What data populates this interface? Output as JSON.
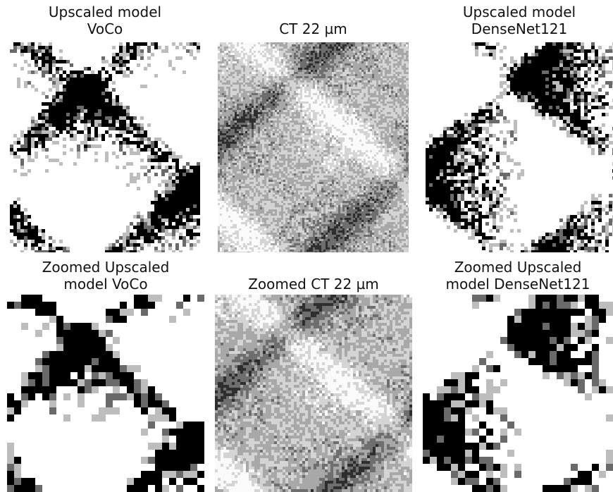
{
  "panels": [
    {
      "title": [
        "Upscaled model",
        "VoCo"
      ]
    },
    {
      "title": [
        "CT 22 µm"
      ]
    },
    {
      "title": [
        "Upscaled model",
        "DenseNet121"
      ]
    },
    {
      "title": [
        "Zoomed Upscaled",
        "model VoCo"
      ]
    },
    {
      "title": [
        "Zoomed CT 22 µm"
      ]
    },
    {
      "title": [
        "Zoomed Upscaled",
        "model DenseNet121"
      ]
    }
  ]
}
